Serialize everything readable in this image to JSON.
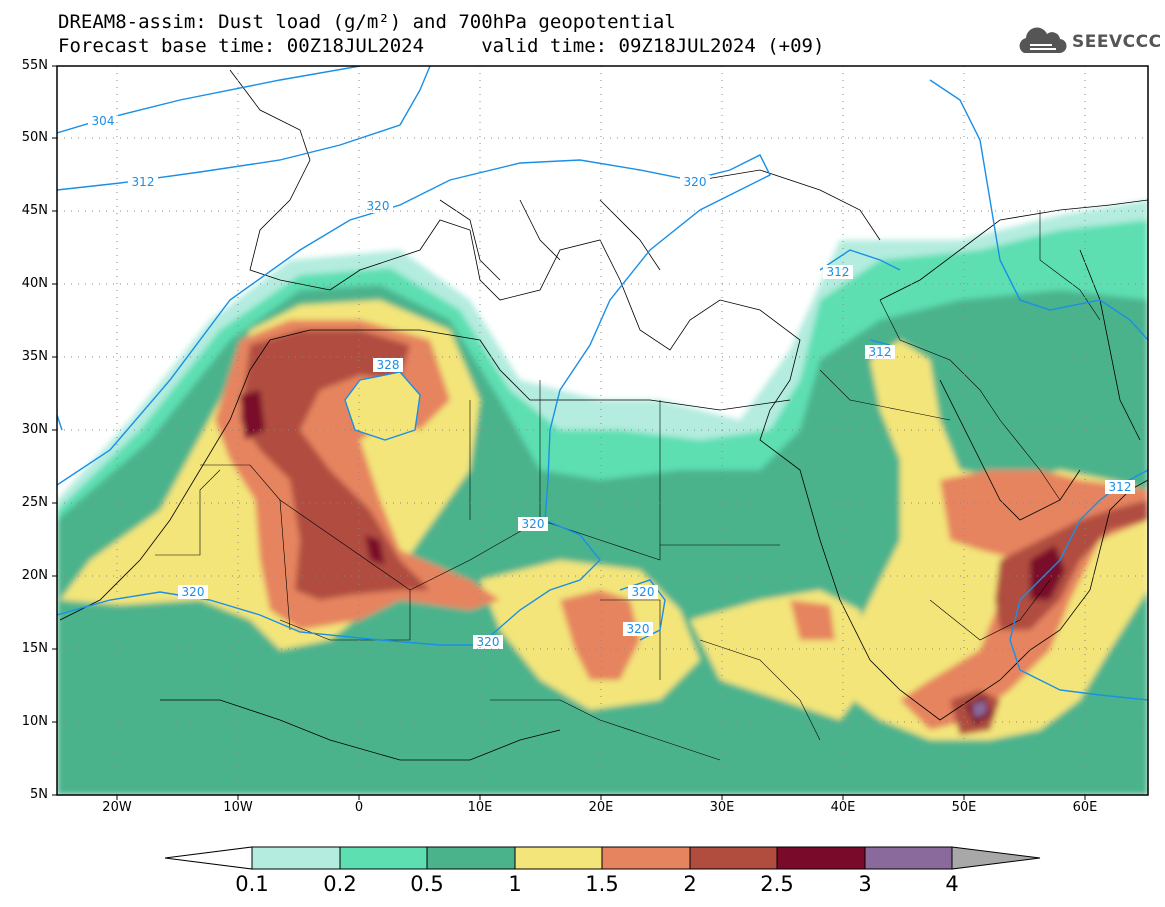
{
  "header": {
    "line1": "DREAM8-assim: Dust load (g/m²) and 700hPa geopotential",
    "line2": "Forecast base time: 00Z18JUL2024     valid time: 09Z18JUL2024 (+09)"
  },
  "logo": {
    "text": "SEEVCCC",
    "icon": "cloud-icon"
  },
  "axes": {
    "lat_labels": [
      "55N",
      "50N",
      "45N",
      "40N",
      "35N",
      "30N",
      "25N",
      "20N",
      "15N",
      "10N",
      "5N"
    ],
    "lon_labels": [
      "20W",
      "10W",
      "0",
      "10E",
      "20E",
      "30E",
      "40E",
      "50E",
      "60E"
    ]
  },
  "contours": {
    "color": "#1a8fe6",
    "labels": [
      "304",
      "312",
      "320",
      "312",
      "320",
      "328",
      "320",
      "320",
      "320",
      "320",
      "312",
      "312",
      "320"
    ]
  },
  "colorbar": {
    "ticks": [
      "0.1",
      "0.2",
      "0.5",
      "1",
      "1.5",
      "2",
      "2.5",
      "3",
      "4"
    ],
    "colors": [
      "#ffffff",
      "#b4ecdf",
      "#5ddfb2",
      "#4bb38c",
      "#f3e57a",
      "#e6845f",
      "#b04d3f",
      "#7a0a2a",
      "#8a6a9c",
      "#a8a8a8"
    ]
  }
}
